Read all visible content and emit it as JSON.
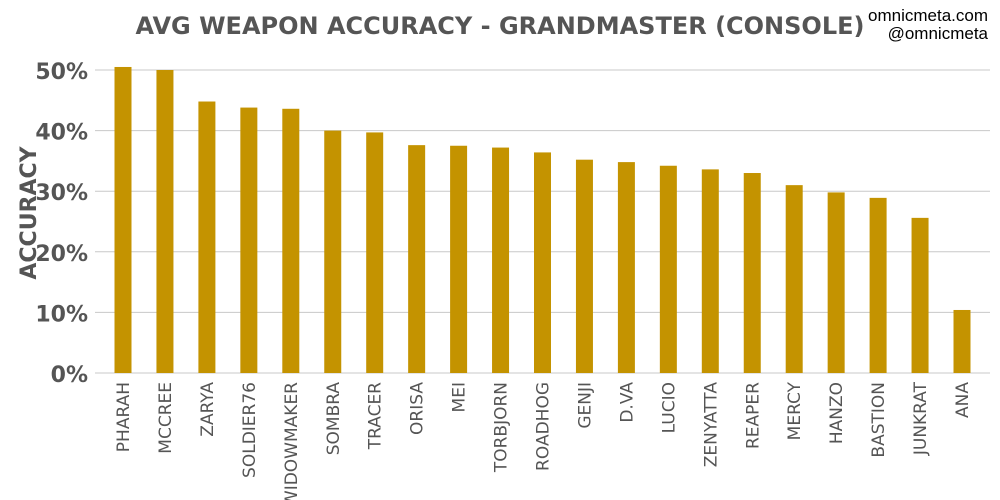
{
  "credits": {
    "site": "omnicmeta.com",
    "handle": "@omnicmeta"
  },
  "colors": {
    "bar": "#C49300",
    "grid": "#c8c8c8",
    "text": "#555555"
  },
  "chart_data": {
    "type": "bar",
    "title": "AVG WEAPON ACCURACY - GRANDMASTER (CONSOLE)",
    "xlabel": "",
    "ylabel": "ACCURACY",
    "ylim": [
      0,
      50
    ],
    "yticks": [
      "0%",
      "10%",
      "20%",
      "30%",
      "40%",
      "50%"
    ],
    "ytick_values": [
      0,
      10,
      20,
      30,
      40,
      50
    ],
    "grid": true,
    "categories": [
      "PHARAH",
      "MCCREE",
      "ZARYA",
      "SOLDIER76",
      "WIDOWMAKER",
      "SOMBRA",
      "TRACER",
      "ORISA",
      "MEI",
      "TORBJORN",
      "ROADHOG",
      "GENJI",
      "D.VA",
      "LUCIO",
      "ZENYATTA",
      "REAPER",
      "MERCY",
      "HANZO",
      "BASTION",
      "JUNKRAT",
      "ANA"
    ],
    "values": [
      50.5,
      50.0,
      44.8,
      43.8,
      43.6,
      40.0,
      39.7,
      37.6,
      37.5,
      37.2,
      36.4,
      35.2,
      34.8,
      34.2,
      33.6,
      33.0,
      31.0,
      29.8,
      28.9,
      25.6,
      10.4
    ]
  }
}
